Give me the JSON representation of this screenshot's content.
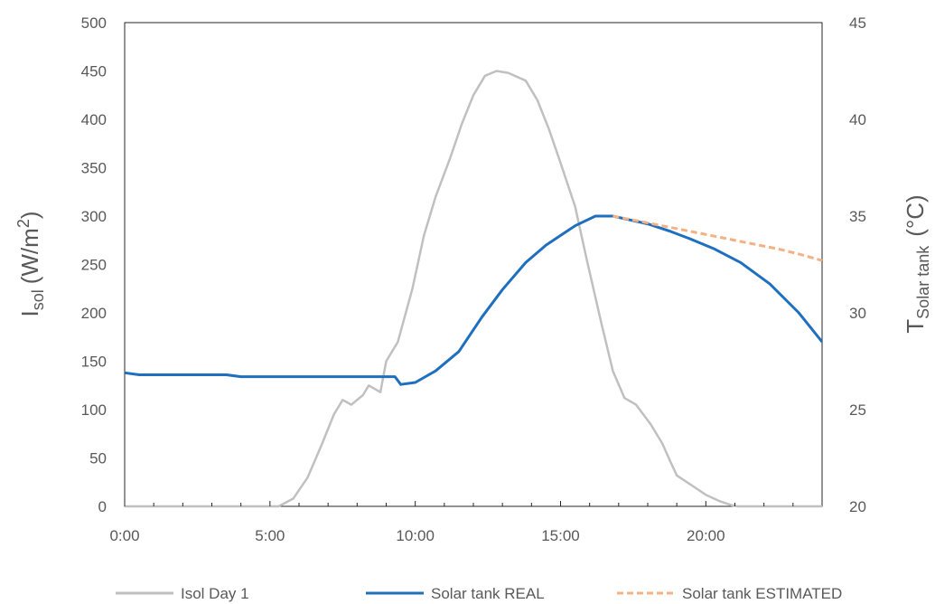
{
  "chart_data": {
    "type": "line",
    "title": "",
    "x_axis": {
      "label": "",
      "ticks": [
        "0:00",
        "5:00",
        "10:00",
        "15:00",
        "20:00"
      ],
      "tick_hours": [
        0,
        5,
        10,
        15,
        20
      ],
      "range_hours": [
        0,
        24
      ]
    },
    "y_axis_left": {
      "label_main": "I",
      "label_sub": "sol",
      "label_unit": "(W/m",
      "label_sup": "2",
      "label_close": ")",
      "ticks": [
        0,
        50,
        100,
        150,
        200,
        250,
        300,
        350,
        400,
        450,
        500
      ],
      "range": [
        0,
        500
      ]
    },
    "y_axis_right": {
      "label_main": "T",
      "label_sub": "Solar tank",
      "label_unit": "(°C)",
      "ticks": [
        20,
        25,
        30,
        35,
        40,
        45
      ],
      "range": [
        20,
        45
      ]
    },
    "legend_position": "bottom",
    "series": [
      {
        "name": "Isol Day 1",
        "axis": "left",
        "color": "#c0c0c0",
        "dash": "solid",
        "x": [
          0,
          5.3,
          5.8,
          6.3,
          6.8,
          7.2,
          7.5,
          7.8,
          8.2,
          8.4,
          8.8,
          9.0,
          9.4,
          9.9,
          10.3,
          10.7,
          11.2,
          11.6,
          12.0,
          12.4,
          12.8,
          13.2,
          13.8,
          14.2,
          14.6,
          15.0,
          15.5,
          15.9,
          16.4,
          16.8,
          17.2,
          17.6,
          18.1,
          18.5,
          18.8,
          19.0,
          19.5,
          20.0,
          20.5,
          20.9,
          21.1,
          24
        ],
        "y": [
          0,
          0,
          8,
          30,
          65,
          95,
          110,
          105,
          115,
          125,
          118,
          150,
          170,
          225,
          280,
          320,
          360,
          395,
          425,
          445,
          450,
          448,
          440,
          420,
          390,
          355,
          310,
          255,
          190,
          140,
          112,
          105,
          85,
          65,
          45,
          32,
          22,
          12,
          5,
          1,
          0,
          0
        ]
      },
      {
        "name": "Solar tank REAL",
        "axis": "right",
        "color": "#1f6fbf",
        "dash": "solid",
        "x": [
          0,
          0.5,
          3.5,
          4.0,
          9.3,
          9.5,
          10.0,
          10.7,
          11.5,
          12.3,
          13.0,
          13.8,
          14.5,
          15.5,
          16.2,
          16.8,
          17.4,
          18.0,
          18.8,
          19.5,
          20.3,
          21.2,
          22.2,
          23.2,
          24.0
        ],
        "y": [
          26.9,
          26.8,
          26.8,
          26.7,
          26.7,
          26.3,
          26.4,
          27.0,
          28.0,
          29.8,
          31.2,
          32.6,
          33.5,
          34.5,
          35.0,
          35.0,
          34.8,
          34.6,
          34.2,
          33.8,
          33.3,
          32.6,
          31.5,
          30.0,
          28.5
        ]
      },
      {
        "name": "Solar tank ESTIMATED",
        "axis": "right",
        "color": "#f4b183",
        "dash": "dashed",
        "x": [
          16.8,
          17.5,
          18.5,
          19.5,
          20.5,
          21.5,
          22.5,
          23.3,
          24.0
        ],
        "y": [
          35.0,
          34.8,
          34.5,
          34.2,
          33.9,
          33.6,
          33.3,
          33.0,
          32.7
        ]
      }
    ]
  }
}
